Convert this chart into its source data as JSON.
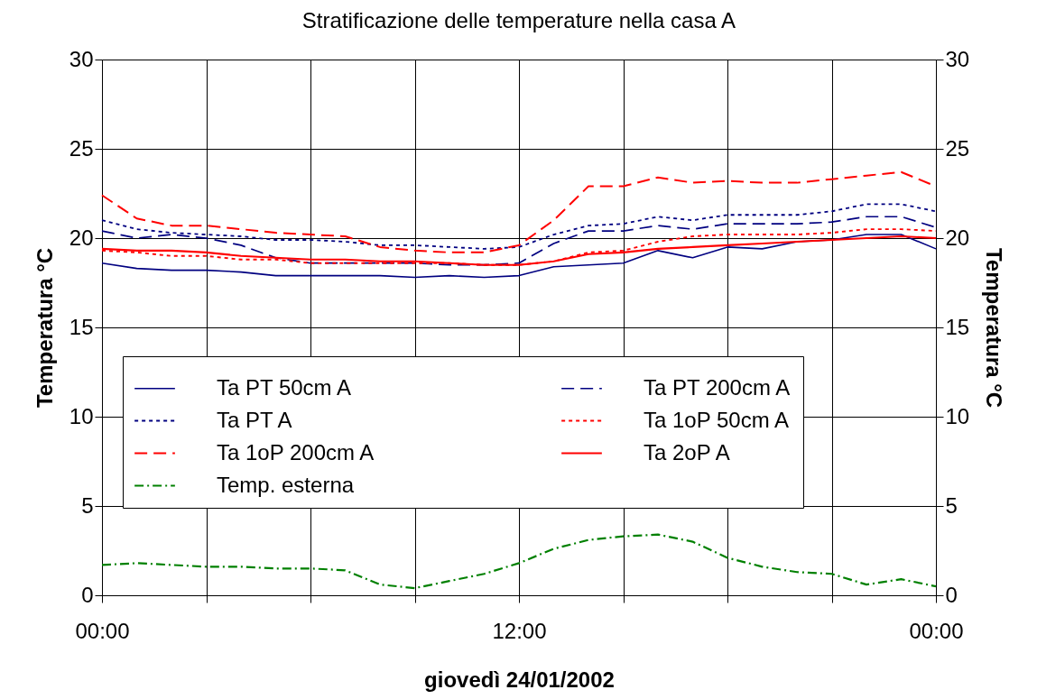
{
  "chart_data": {
    "type": "line",
    "title": "Stratificazione delle temperature nella casa A",
    "xlabel": "giovedì 24/01/2002",
    "ylabel": "Temperatura °C",
    "y2label": "Temperatura °C",
    "x": [
      0,
      1,
      2,
      3,
      4,
      5,
      6,
      7,
      8,
      9,
      10,
      11,
      12,
      13,
      14,
      15,
      16,
      17,
      18,
      19,
      20,
      21,
      22,
      23,
      24
    ],
    "xlim": [
      0,
      24
    ],
    "xticks": [
      {
        "value": 0,
        "label": "00:00"
      },
      {
        "value": 3,
        "label": null
      },
      {
        "value": 6,
        "label": null
      },
      {
        "value": 9,
        "label": null
      },
      {
        "value": 12,
        "label": "12:00"
      },
      {
        "value": 15,
        "label": null
      },
      {
        "value": 18,
        "label": null
      },
      {
        "value": 21,
        "label": null
      },
      {
        "value": 24,
        "label": "00:00"
      }
    ],
    "ylim": [
      0,
      30
    ],
    "yticks": [
      0,
      5,
      10,
      15,
      20,
      25,
      30
    ],
    "y2lim": [
      0,
      30
    ],
    "y2ticks": [
      0,
      5,
      10,
      15,
      20,
      25,
      30
    ],
    "grid": true,
    "legend": "left",
    "marker": "none",
    "series": [
      {
        "name": "Ta PT 50cm A",
        "color": "#000080",
        "line_style": "solid",
        "values": [
          18.6,
          18.3,
          18.2,
          18.2,
          18.1,
          17.9,
          17.9,
          17.9,
          17.9,
          17.8,
          17.9,
          17.8,
          17.9,
          18.4,
          18.5,
          18.6,
          19.3,
          18.9,
          19.5,
          19.4,
          19.8,
          19.9,
          20.2,
          20.2,
          19.4
        ]
      },
      {
        "name": "Ta PT 200cm A",
        "color": "#000080",
        "line_style": "dashed",
        "values": [
          20.4,
          20.0,
          20.2,
          20.0,
          19.6,
          18.9,
          18.6,
          18.6,
          18.6,
          18.6,
          18.5,
          18.5,
          18.6,
          19.7,
          20.4,
          20.4,
          20.7,
          20.5,
          20.8,
          20.8,
          20.8,
          20.9,
          21.2,
          21.2,
          20.6
        ]
      },
      {
        "name": "Ta PT A",
        "color": "#000080",
        "line_style": "dotted",
        "values": [
          21.0,
          20.5,
          20.3,
          20.2,
          20.1,
          19.9,
          19.9,
          19.8,
          19.6,
          19.6,
          19.5,
          19.4,
          19.5,
          20.2,
          20.7,
          20.8,
          21.2,
          21.0,
          21.3,
          21.3,
          21.3,
          21.5,
          21.9,
          21.9,
          21.5
        ]
      },
      {
        "name": "Ta 1oP 50cm A",
        "color": "#ff0000",
        "line_style": "dotted",
        "values": [
          19.3,
          19.2,
          19.0,
          19.0,
          18.8,
          18.8,
          18.6,
          18.6,
          18.6,
          18.6,
          18.6,
          18.5,
          18.5,
          18.7,
          19.2,
          19.3,
          19.8,
          20.1,
          20.2,
          20.2,
          20.2,
          20.3,
          20.5,
          20.5,
          20.4
        ]
      },
      {
        "name": "Ta 1oP 200cm A",
        "color": "#ff0000",
        "line_style": "dashed",
        "values": [
          22.4,
          21.1,
          20.7,
          20.7,
          20.5,
          20.3,
          20.2,
          20.1,
          19.5,
          19.3,
          19.2,
          19.2,
          19.6,
          21.0,
          22.9,
          22.9,
          23.4,
          23.1,
          23.2,
          23.1,
          23.1,
          23.3,
          23.5,
          23.7,
          22.9
        ]
      },
      {
        "name": "Ta 2oP A",
        "color": "#ff0000",
        "line_style": "solid",
        "values": [
          19.4,
          19.3,
          19.3,
          19.2,
          19.0,
          18.9,
          18.8,
          18.8,
          18.7,
          18.7,
          18.6,
          18.5,
          18.5,
          18.7,
          19.1,
          19.2,
          19.4,
          19.5,
          19.6,
          19.7,
          19.8,
          19.9,
          20.0,
          20.1,
          20.0
        ]
      },
      {
        "name": "Temp. esterna",
        "color": "#008000",
        "line_style": "dashdot",
        "values": [
          1.7,
          1.8,
          1.7,
          1.6,
          1.6,
          1.5,
          1.5,
          1.4,
          0.6,
          0.4,
          0.8,
          1.2,
          1.8,
          2.6,
          3.1,
          3.3,
          3.4,
          3.0,
          2.1,
          1.6,
          1.3,
          1.2,
          0.6,
          0.9,
          0.5
        ]
      }
    ]
  }
}
